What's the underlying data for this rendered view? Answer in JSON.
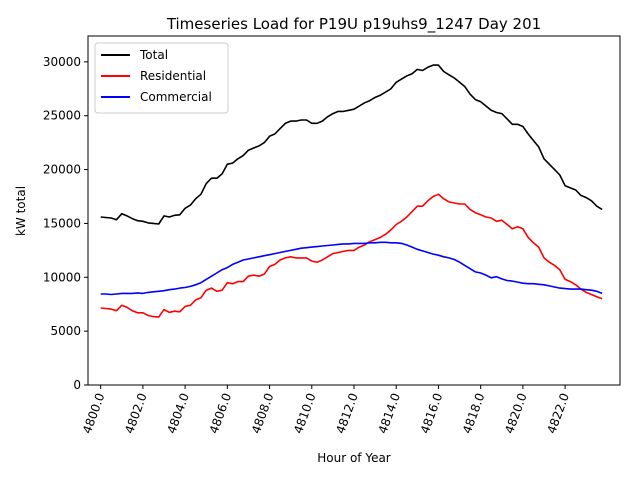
{
  "chart_data": {
    "type": "line",
    "title": "Timeseries Load for P19U p19uhs9_1247  Day 201",
    "xlabel": "Hour of Year",
    "ylabel": "kW total",
    "xlim": [
      4799.4,
      4824.6
    ],
    "ylim": [
      0,
      32400
    ],
    "xticks": [
      4800,
      4802,
      4804,
      4806,
      4808,
      4810,
      4812,
      4814,
      4816,
      4818,
      4820,
      4822
    ],
    "xtick_labels": [
      "4800.0",
      "4802.0",
      "4804.0",
      "4806.0",
      "4808.0",
      "4810.0",
      "4812.0",
      "4814.0",
      "4816.0",
      "4818.0",
      "4820.0",
      "4822.0"
    ],
    "yticks": [
      0,
      5000,
      10000,
      15000,
      20000,
      25000,
      30000
    ],
    "ytick_labels": [
      "0",
      "5000",
      "10000",
      "15000",
      "20000",
      "25000",
      "30000"
    ],
    "legend_position": "top-left",
    "series": [
      {
        "name": "Total",
        "color": "#000000",
        "x": [
          4800.0,
          4800.25,
          4800.5,
          4800.75,
          4801.0,
          4801.25,
          4801.5,
          4801.75,
          4802.0,
          4802.25,
          4802.5,
          4802.75,
          4803.0,
          4803.25,
          4803.5,
          4803.75,
          4804.0,
          4804.25,
          4804.5,
          4804.75,
          4805.0,
          4805.25,
          4805.5,
          4805.75,
          4806.0,
          4806.25,
          4806.5,
          4806.75,
          4807.0,
          4807.25,
          4807.5,
          4807.75,
          4808.0,
          4808.25,
          4808.5,
          4808.75,
          4809.0,
          4809.25,
          4809.5,
          4809.75,
          4810.0,
          4810.25,
          4810.5,
          4810.75,
          4811.0,
          4811.25,
          4811.5,
          4811.75,
          4812.0,
          4812.25,
          4812.5,
          4812.75,
          4813.0,
          4813.25,
          4813.5,
          4813.75,
          4814.0,
          4814.25,
          4814.5,
          4814.75,
          4815.0,
          4815.25,
          4815.5,
          4815.75,
          4816.0,
          4816.25,
          4816.5,
          4816.75,
          4817.0,
          4817.25,
          4817.5,
          4817.75,
          4818.0,
          4818.25,
          4818.5,
          4818.75,
          4819.0,
          4819.25,
          4819.5,
          4819.75,
          4820.0,
          4820.25,
          4820.5,
          4820.75,
          4821.0,
          4821.25,
          4821.5,
          4821.75,
          4822.0,
          4822.25,
          4822.5,
          4822.75,
          4823.0,
          4823.25,
          4823.5,
          4823.75
        ],
        "values": [
          15600,
          15550,
          15500,
          15350,
          15900,
          15700,
          15450,
          15250,
          15200,
          15050,
          15000,
          14950,
          15700,
          15600,
          15750,
          15800,
          16400,
          16700,
          17300,
          17700,
          18700,
          19200,
          19200,
          19600,
          20500,
          20600,
          21000,
          21300,
          21800,
          22000,
          22200,
          22500,
          23100,
          23300,
          23800,
          24300,
          24500,
          24500,
          24600,
          24600,
          24300,
          24300,
          24500,
          24900,
          25200,
          25400,
          25400,
          25500,
          25600,
          25900,
          26200,
          26400,
          26700,
          26900,
          27200,
          27500,
          28100,
          28400,
          28700,
          28900,
          29300,
          29200,
          29500,
          29700,
          29700,
          29100,
          28800,
          28500,
          28100,
          27700,
          27000,
          26500,
          26300,
          25900,
          25500,
          25300,
          25200,
          24700,
          24200,
          24200,
          24000,
          23300,
          22700,
          22100,
          21000,
          20500,
          20000,
          19500,
          18500,
          18300,
          18100,
          17600,
          17400,
          17100,
          16600,
          16300
        ]
      },
      {
        "name": "Residential",
        "color": "#ff0000",
        "x": [
          4800.0,
          4800.25,
          4800.5,
          4800.75,
          4801.0,
          4801.25,
          4801.5,
          4801.75,
          4802.0,
          4802.25,
          4802.5,
          4802.75,
          4803.0,
          4803.25,
          4803.5,
          4803.75,
          4804.0,
          4804.25,
          4804.5,
          4804.75,
          4805.0,
          4805.25,
          4805.5,
          4805.75,
          4806.0,
          4806.25,
          4806.5,
          4806.75,
          4807.0,
          4807.25,
          4807.5,
          4807.75,
          4808.0,
          4808.25,
          4808.5,
          4808.75,
          4809.0,
          4809.25,
          4809.5,
          4809.75,
          4810.0,
          4810.25,
          4810.5,
          4810.75,
          4811.0,
          4811.25,
          4811.5,
          4811.75,
          4812.0,
          4812.25,
          4812.5,
          4812.75,
          4813.0,
          4813.25,
          4813.5,
          4813.75,
          4814.0,
          4814.25,
          4814.5,
          4814.75,
          4815.0,
          4815.25,
          4815.5,
          4815.75,
          4816.0,
          4816.25,
          4816.5,
          4816.75,
          4817.0,
          4817.25,
          4817.5,
          4817.75,
          4818.0,
          4818.25,
          4818.5,
          4818.75,
          4819.0,
          4819.25,
          4819.5,
          4819.75,
          4820.0,
          4820.25,
          4820.5,
          4820.75,
          4821.0,
          4821.25,
          4821.5,
          4821.75,
          4822.0,
          4822.25,
          4822.5,
          4822.75,
          4823.0,
          4823.25,
          4823.5,
          4823.75
        ],
        "values": [
          7150,
          7100,
          7050,
          6900,
          7400,
          7200,
          6900,
          6700,
          6700,
          6450,
          6350,
          6300,
          7000,
          6750,
          6850,
          6800,
          7300,
          7400,
          7900,
          8100,
          8800,
          9000,
          8700,
          8800,
          9500,
          9400,
          9600,
          9600,
          10100,
          10200,
          10100,
          10300,
          11000,
          11200,
          11600,
          11800,
          11900,
          11800,
          11800,
          11800,
          11500,
          11400,
          11600,
          11900,
          12200,
          12300,
          12400,
          12500,
          12500,
          12800,
          13000,
          13300,
          13500,
          13700,
          14000,
          14400,
          14900,
          15200,
          15600,
          16100,
          16600,
          16600,
          17100,
          17500,
          17700,
          17300,
          17000,
          16900,
          16800,
          16800,
          16300,
          16000,
          15800,
          15600,
          15500,
          15200,
          15300,
          14900,
          14500,
          14700,
          14500,
          13700,
          13200,
          12800,
          11800,
          11400,
          11100,
          10700,
          9800,
          9600,
          9300,
          8900,
          8600,
          8400,
          8200,
          8000
        ]
      },
      {
        "name": "Commercial",
        "color": "#0000ff",
        "x": [
          4800.0,
          4800.25,
          4800.5,
          4800.75,
          4801.0,
          4801.25,
          4801.5,
          4801.75,
          4802.0,
          4802.25,
          4802.5,
          4802.75,
          4803.0,
          4803.25,
          4803.5,
          4803.75,
          4804.0,
          4804.25,
          4804.5,
          4804.75,
          4805.0,
          4805.25,
          4805.5,
          4805.75,
          4806.0,
          4806.25,
          4806.5,
          4806.75,
          4807.0,
          4807.25,
          4807.5,
          4807.75,
          4808.0,
          4808.25,
          4808.5,
          4808.75,
          4809.0,
          4809.25,
          4809.5,
          4809.75,
          4810.0,
          4810.25,
          4810.5,
          4810.75,
          4811.0,
          4811.25,
          4811.5,
          4811.75,
          4812.0,
          4812.25,
          4812.5,
          4812.75,
          4813.0,
          4813.25,
          4813.5,
          4813.75,
          4814.0,
          4814.25,
          4814.5,
          4814.75,
          4815.0,
          4815.25,
          4815.5,
          4815.75,
          4816.0,
          4816.25,
          4816.5,
          4816.75,
          4817.0,
          4817.25,
          4817.5,
          4817.75,
          4818.0,
          4818.25,
          4818.5,
          4818.75,
          4819.0,
          4819.25,
          4819.5,
          4819.75,
          4820.0,
          4820.25,
          4820.5,
          4820.75,
          4821.0,
          4821.25,
          4821.5,
          4821.75,
          4822.0,
          4822.25,
          4822.5,
          4822.75,
          4823.0,
          4823.25,
          4823.5,
          4823.75
        ],
        "values": [
          8450,
          8450,
          8400,
          8450,
          8500,
          8500,
          8500,
          8550,
          8500,
          8600,
          8650,
          8700,
          8750,
          8850,
          8900,
          9000,
          9050,
          9150,
          9300,
          9500,
          9800,
          10100,
          10400,
          10700,
          10900,
          11200,
          11400,
          11600,
          11700,
          11800,
          11900,
          12000,
          12100,
          12200,
          12300,
          12400,
          12500,
          12600,
          12700,
          12750,
          12800,
          12850,
          12900,
          12950,
          13000,
          13050,
          13100,
          13100,
          13150,
          13150,
          13150,
          13200,
          13200,
          13250,
          13250,
          13200,
          13200,
          13150,
          13000,
          12800,
          12600,
          12450,
          12300,
          12150,
          12050,
          11900,
          11800,
          11650,
          11400,
          11100,
          10800,
          10500,
          10400,
          10200,
          9950,
          10050,
          9850,
          9700,
          9650,
          9550,
          9450,
          9400,
          9400,
          9350,
          9300,
          9200,
          9100,
          9000,
          8950,
          8900,
          8900,
          8900,
          8850,
          8800,
          8700,
          8500
        ]
      }
    ]
  }
}
